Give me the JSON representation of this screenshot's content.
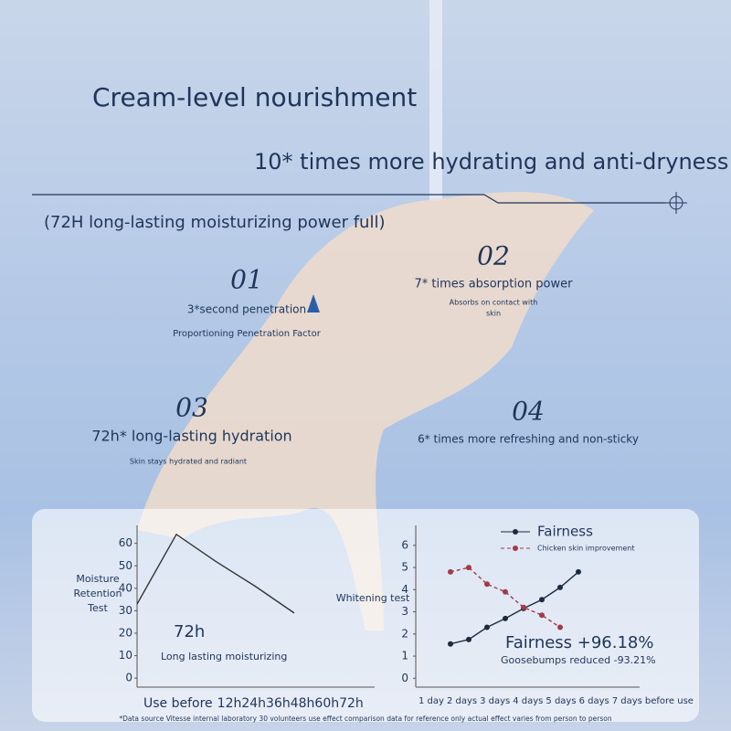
{
  "header": {
    "title": "Cream-level nourishment",
    "subtitle": "10* times more hydrating and anti-dryness",
    "note": "(72H long-lasting moisturizing power full)"
  },
  "features": [
    {
      "number": "01",
      "title": "3*second penetration",
      "desc": [
        "Proportioning Penetration Factor"
      ]
    },
    {
      "number": "02",
      "title": "7* times absorption power",
      "desc": [
        "Absorbs on contact with",
        "skin"
      ]
    },
    {
      "number": "03",
      "title": "72h* long-lasting hydration",
      "desc": [
        "Skin stays hydrated and radiant"
      ]
    },
    {
      "number": "04",
      "title": "6* times more refreshing and non-sticky",
      "desc": []
    }
  ],
  "chart_data": [
    {
      "type": "line",
      "ylabel": "Moisture Retention Test",
      "categories": [
        "Use before",
        "12h",
        "24h",
        "36h",
        "48h",
        "60h",
        "72h"
      ],
      "series": [
        {
          "color": "#333333",
          "values": [
            33,
            64,
            52,
            41,
            29,
            null,
            null
          ]
        }
      ],
      "ylim": [
        -4,
        68
      ],
      "yticks": [
        0,
        10,
        20,
        30,
        40,
        50,
        60
      ],
      "annotations": [
        "72h",
        "Long lasting moisturizing"
      ]
    },
    {
      "type": "line",
      "ylabel": "Whitening test",
      "categories": [
        "1 day",
        "2 days",
        "3 days",
        "4 days",
        "5 days",
        "6 days",
        "7 days",
        "before use"
      ],
      "series": [
        {
          "name": "Fairness",
          "color": "#1c2b40",
          "values": [
            1.55,
            1.75,
            2.3,
            2.7,
            3.15,
            3.55,
            4.1,
            4.8
          ]
        },
        {
          "name": "Chicken skin improvement",
          "color": "#a33a48",
          "dashed": true,
          "values": [
            4.8,
            5.0,
            4.25,
            3.9,
            3.2,
            2.85,
            2.3,
            null
          ]
        }
      ],
      "ylim": [
        -0.4,
        6.9
      ],
      "yticks": [
        0,
        1,
        2,
        3,
        4,
        5,
        6
      ],
      "annotations": [
        "Fairness +96.18%",
        "Goosebumps reduced -93.21%"
      ]
    }
  ],
  "footnote": "*Data source Vitesse internal laboratory 30 volunteers use effect comparison data for reference only actual effect varies from person to person"
}
